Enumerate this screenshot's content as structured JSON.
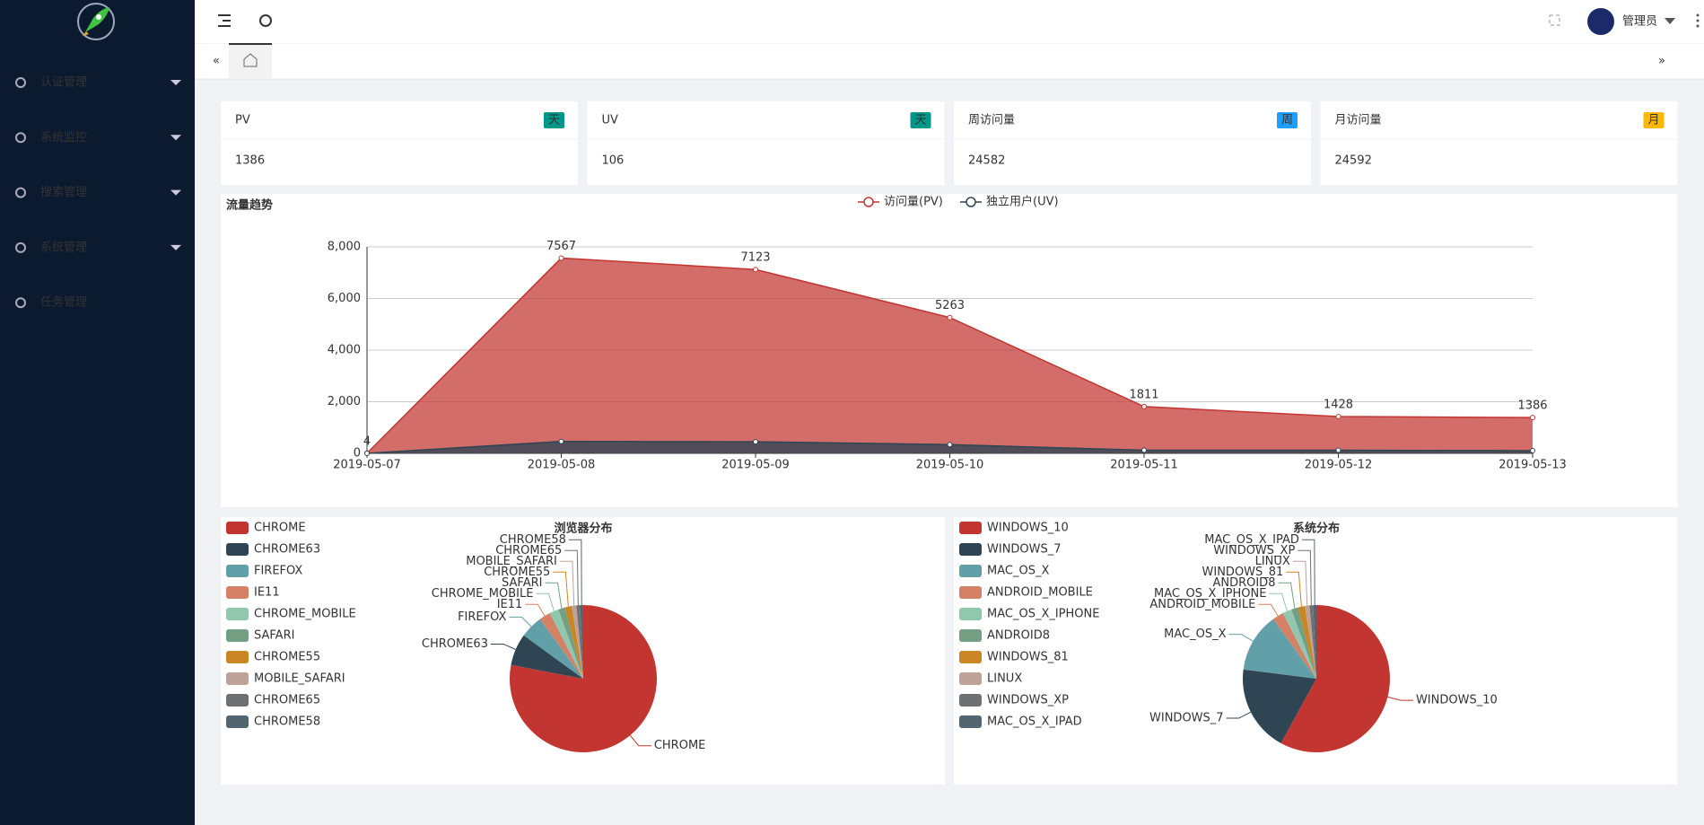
{
  "sidebar": {
    "menu": [
      "认证管理",
      "系统监控",
      "搜索管理",
      "系统管理",
      "任务管理"
    ]
  },
  "header": {
    "user": "管理员"
  },
  "cards": [
    {
      "title": "PV",
      "badge": "天",
      "color": "#009688",
      "value": 1386
    },
    {
      "title": "UV",
      "badge": "天",
      "color": "#009688",
      "value": 106
    },
    {
      "title": "周访问量",
      "badge": "周",
      "color": "#1e9fff",
      "value": 24582
    },
    {
      "title": "月访问量",
      "badge": "月",
      "color": "#ffb800",
      "value": 24592
    }
  ],
  "chart_data": [
    {
      "type": "area",
      "title": "流量趋势",
      "categories": [
        "2019-05-07",
        "2019-05-08",
        "2019-05-09",
        "2019-05-10",
        "2019-05-11",
        "2019-05-12",
        "2019-05-13"
      ],
      "series": [
        {
          "name": "访问量(PV)",
          "color": "#c23531",
          "values": [
            4,
            7567,
            7123,
            5263,
            1811,
            1428,
            1386
          ]
        },
        {
          "name": "独立用户(UV)",
          "color": "#2f4554",
          "values": [
            1,
            460,
            450,
            340,
            120,
            120,
            106
          ]
        }
      ],
      "ylim": [
        0,
        8000
      ],
      "yticks": [
        0,
        {
          "value": 2000,
          "label": "2,000"
        },
        {
          "value": 4000,
          "label": "4,000"
        },
        {
          "value": 6000,
          "label": "6,000"
        },
        {
          "value": 8000,
          "label": "8,000"
        }
      ],
      "grid": true
    },
    {
      "type": "pie",
      "title": "浏览器分布",
      "categories": [
        "CHROME",
        "CHROME63",
        "FIREFOX",
        "IE11",
        "CHROME_MOBILE",
        "SAFARI",
        "CHROME55",
        "MOBILE_SAFARI",
        "CHROME65",
        "CHROME58"
      ],
      "values": [
        78,
        7,
        5,
        2.5,
        2,
        1.5,
        1.5,
        1,
        0.8,
        0.7
      ],
      "colors": [
        "#c23531",
        "#2f4554",
        "#61a0a8",
        "#d48265",
        "#91c7ae",
        "#749f83",
        "#ca8622",
        "#bda29a",
        "#6e7074",
        "#546570"
      ]
    },
    {
      "type": "pie",
      "title": "系统分布",
      "categories": [
        "WINDOWS_10",
        "WINDOWS_7",
        "MAC_OS_X",
        "ANDROID_MOBILE",
        "MAC_OS_X_IPHONE",
        "ANDROID8",
        "WINDOWS_81",
        "LINUX",
        "WINDOWS_XP",
        "MAC_OS_X_IPAD"
      ],
      "values": [
        58,
        19,
        13,
        2.5,
        2,
        1.5,
        1.5,
        1,
        0.8,
        0.7
      ],
      "colors": [
        "#c23531",
        "#2f4554",
        "#61a0a8",
        "#d48265",
        "#91c7ae",
        "#749f83",
        "#ca8622",
        "#bda29a",
        "#6e7074",
        "#546570"
      ]
    }
  ]
}
